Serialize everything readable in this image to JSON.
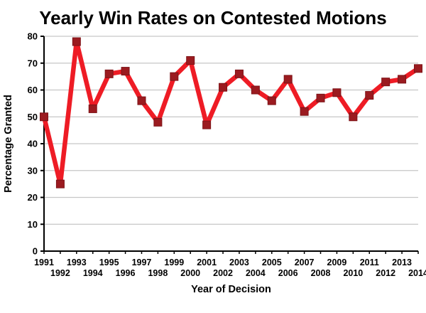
{
  "chart_data": {
    "type": "line",
    "title": "Yearly Win Rates on Contested Motions",
    "xlabel": "Year of Decision",
    "ylabel": "Percentage Granted",
    "x": [
      1991,
      1992,
      1993,
      1994,
      1995,
      1996,
      1997,
      1998,
      1999,
      2000,
      2001,
      2002,
      2003,
      2004,
      2005,
      2006,
      2007,
      2008,
      2009,
      2010,
      2011,
      2012,
      2013,
      2014
    ],
    "values": [
      50,
      25,
      78,
      53,
      66,
      67,
      56,
      48,
      65,
      71,
      47,
      61,
      66,
      60,
      56,
      64,
      52,
      57,
      59,
      50,
      58,
      63,
      64,
      68
    ],
    "ylim": [
      0,
      80
    ],
    "ytick_step": 10,
    "grid": true,
    "legend": "none",
    "colors": {
      "line": "#ee1c25",
      "marker": "#9b1b20",
      "grid": "#c6c6c6",
      "axis": "#000000",
      "text": "#000000"
    }
  }
}
